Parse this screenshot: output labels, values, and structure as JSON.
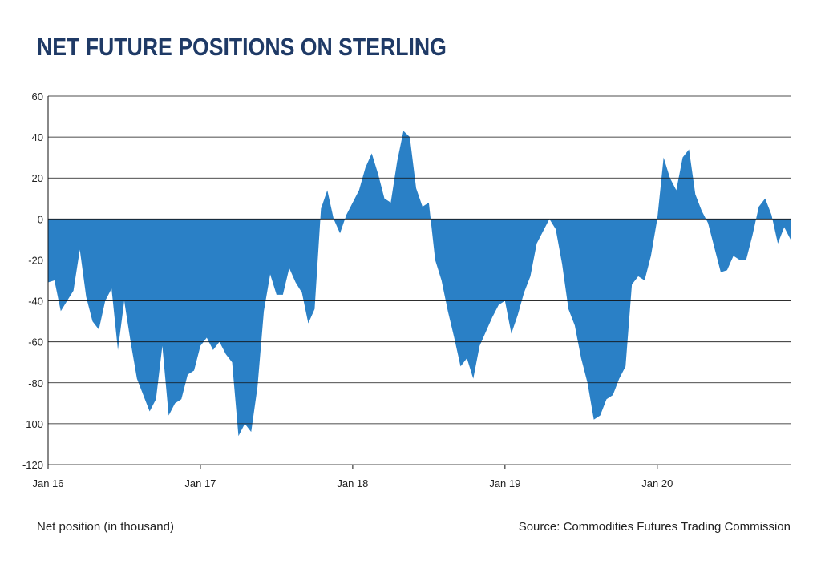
{
  "chart_data": {
    "type": "area",
    "title": "NET FUTURE POSITIONS ON STERLING",
    "y_label": "Net position (in thousand)",
    "source": "Source: Commodities Futures Trading Commission",
    "color": "#2a80c6",
    "grid": true,
    "ylim": [
      -120,
      60
    ],
    "yticks": [
      -120,
      -100,
      -80,
      -60,
      -40,
      -20,
      0,
      20,
      40,
      60
    ],
    "categories": [
      "Jan 16",
      null,
      null,
      null,
      null,
      null,
      null,
      null,
      null,
      null,
      null,
      null,
      null,
      null,
      null,
      null,
      null,
      null,
      null,
      null,
      null,
      null,
      null,
      null,
      "Jan 17",
      null,
      null,
      null,
      null,
      null,
      null,
      null,
      null,
      null,
      null,
      null,
      null,
      null,
      null,
      null,
      null,
      null,
      null,
      null,
      null,
      null,
      null,
      null,
      "Jan 18",
      null,
      null,
      null,
      null,
      null,
      null,
      null,
      null,
      null,
      null,
      null,
      null,
      null,
      null,
      null,
      null,
      null,
      null,
      null,
      null,
      null,
      null,
      null,
      "Jan 19",
      null,
      null,
      null,
      null,
      null,
      null,
      null,
      null,
      null,
      null,
      null,
      null,
      null,
      null,
      null,
      null,
      null,
      null,
      null,
      null,
      null,
      null,
      null,
      "Jan 20",
      null,
      null,
      null,
      null,
      null,
      null,
      null,
      null,
      null,
      null,
      null,
      null,
      null,
      null,
      null,
      null,
      null,
      null,
      null,
      null,
      null
    ],
    "values": [
      -31,
      -30,
      -45,
      -40,
      -35,
      -15,
      -38,
      -50,
      -54,
      -40,
      -34,
      -64,
      -40,
      -60,
      -78,
      -86,
      -94,
      -88,
      -62,
      -96,
      -90,
      -88,
      -76,
      -74,
      -62,
      -58,
      -64,
      -60,
      -66,
      -70,
      -106,
      -100,
      -104,
      -82,
      -45,
      -27,
      -37,
      -37,
      -24,
      -31,
      -36,
      -51,
      -44,
      5,
      14,
      0,
      -7,
      2,
      8,
      14,
      25,
      32,
      22,
      10,
      8,
      28,
      43,
      40,
      15,
      6,
      8,
      -20,
      -30,
      -45,
      -58,
      -72,
      -68,
      -78,
      -62,
      -55,
      -48,
      -42,
      -40,
      -56,
      -47,
      -36,
      -28,
      -12,
      -6,
      0,
      -5,
      -22,
      -44,
      -52,
      -68,
      -80,
      -98,
      -96,
      -88,
      -86,
      -78,
      -72,
      -32,
      -28,
      -30,
      -18,
      0,
      30,
      20,
      14,
      30,
      34,
      12,
      4,
      -2,
      -14,
      -26,
      -25,
      -18,
      -20,
      -20,
      -8,
      6,
      10,
      2,
      -12,
      -4,
      -10
    ]
  }
}
